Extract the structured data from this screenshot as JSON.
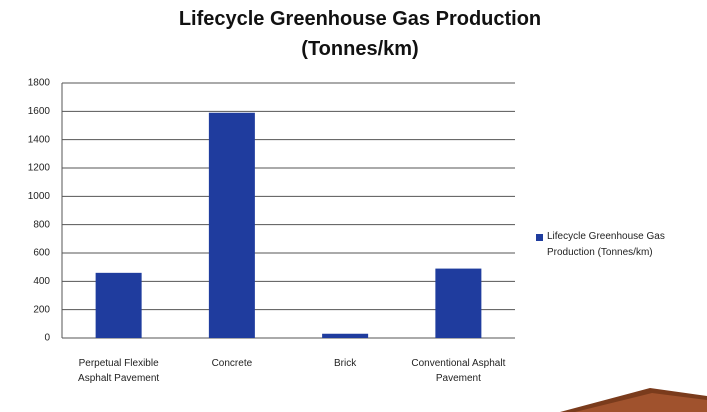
{
  "chart_data": {
    "type": "bar",
    "title": "Lifecycle Greenhouse Gas Production (Tonnes/km)",
    "categories": [
      "Perpetual Flexible Asphalt Pavement",
      "Concrete",
      "Brick",
      "Conventional Asphalt Pavement"
    ],
    "series": [
      {
        "name": "Lifecycle Greenhouse Gas Production (Tonnes/km)",
        "color": "#1f3c9e",
        "values": [
          460,
          1590,
          30,
          490
        ]
      }
    ],
    "ylim": [
      0,
      1800
    ],
    "yticks": [
      0,
      200,
      400,
      600,
      800,
      1000,
      1200,
      1400,
      1600,
      1800
    ],
    "grid": true,
    "legend": "right"
  }
}
